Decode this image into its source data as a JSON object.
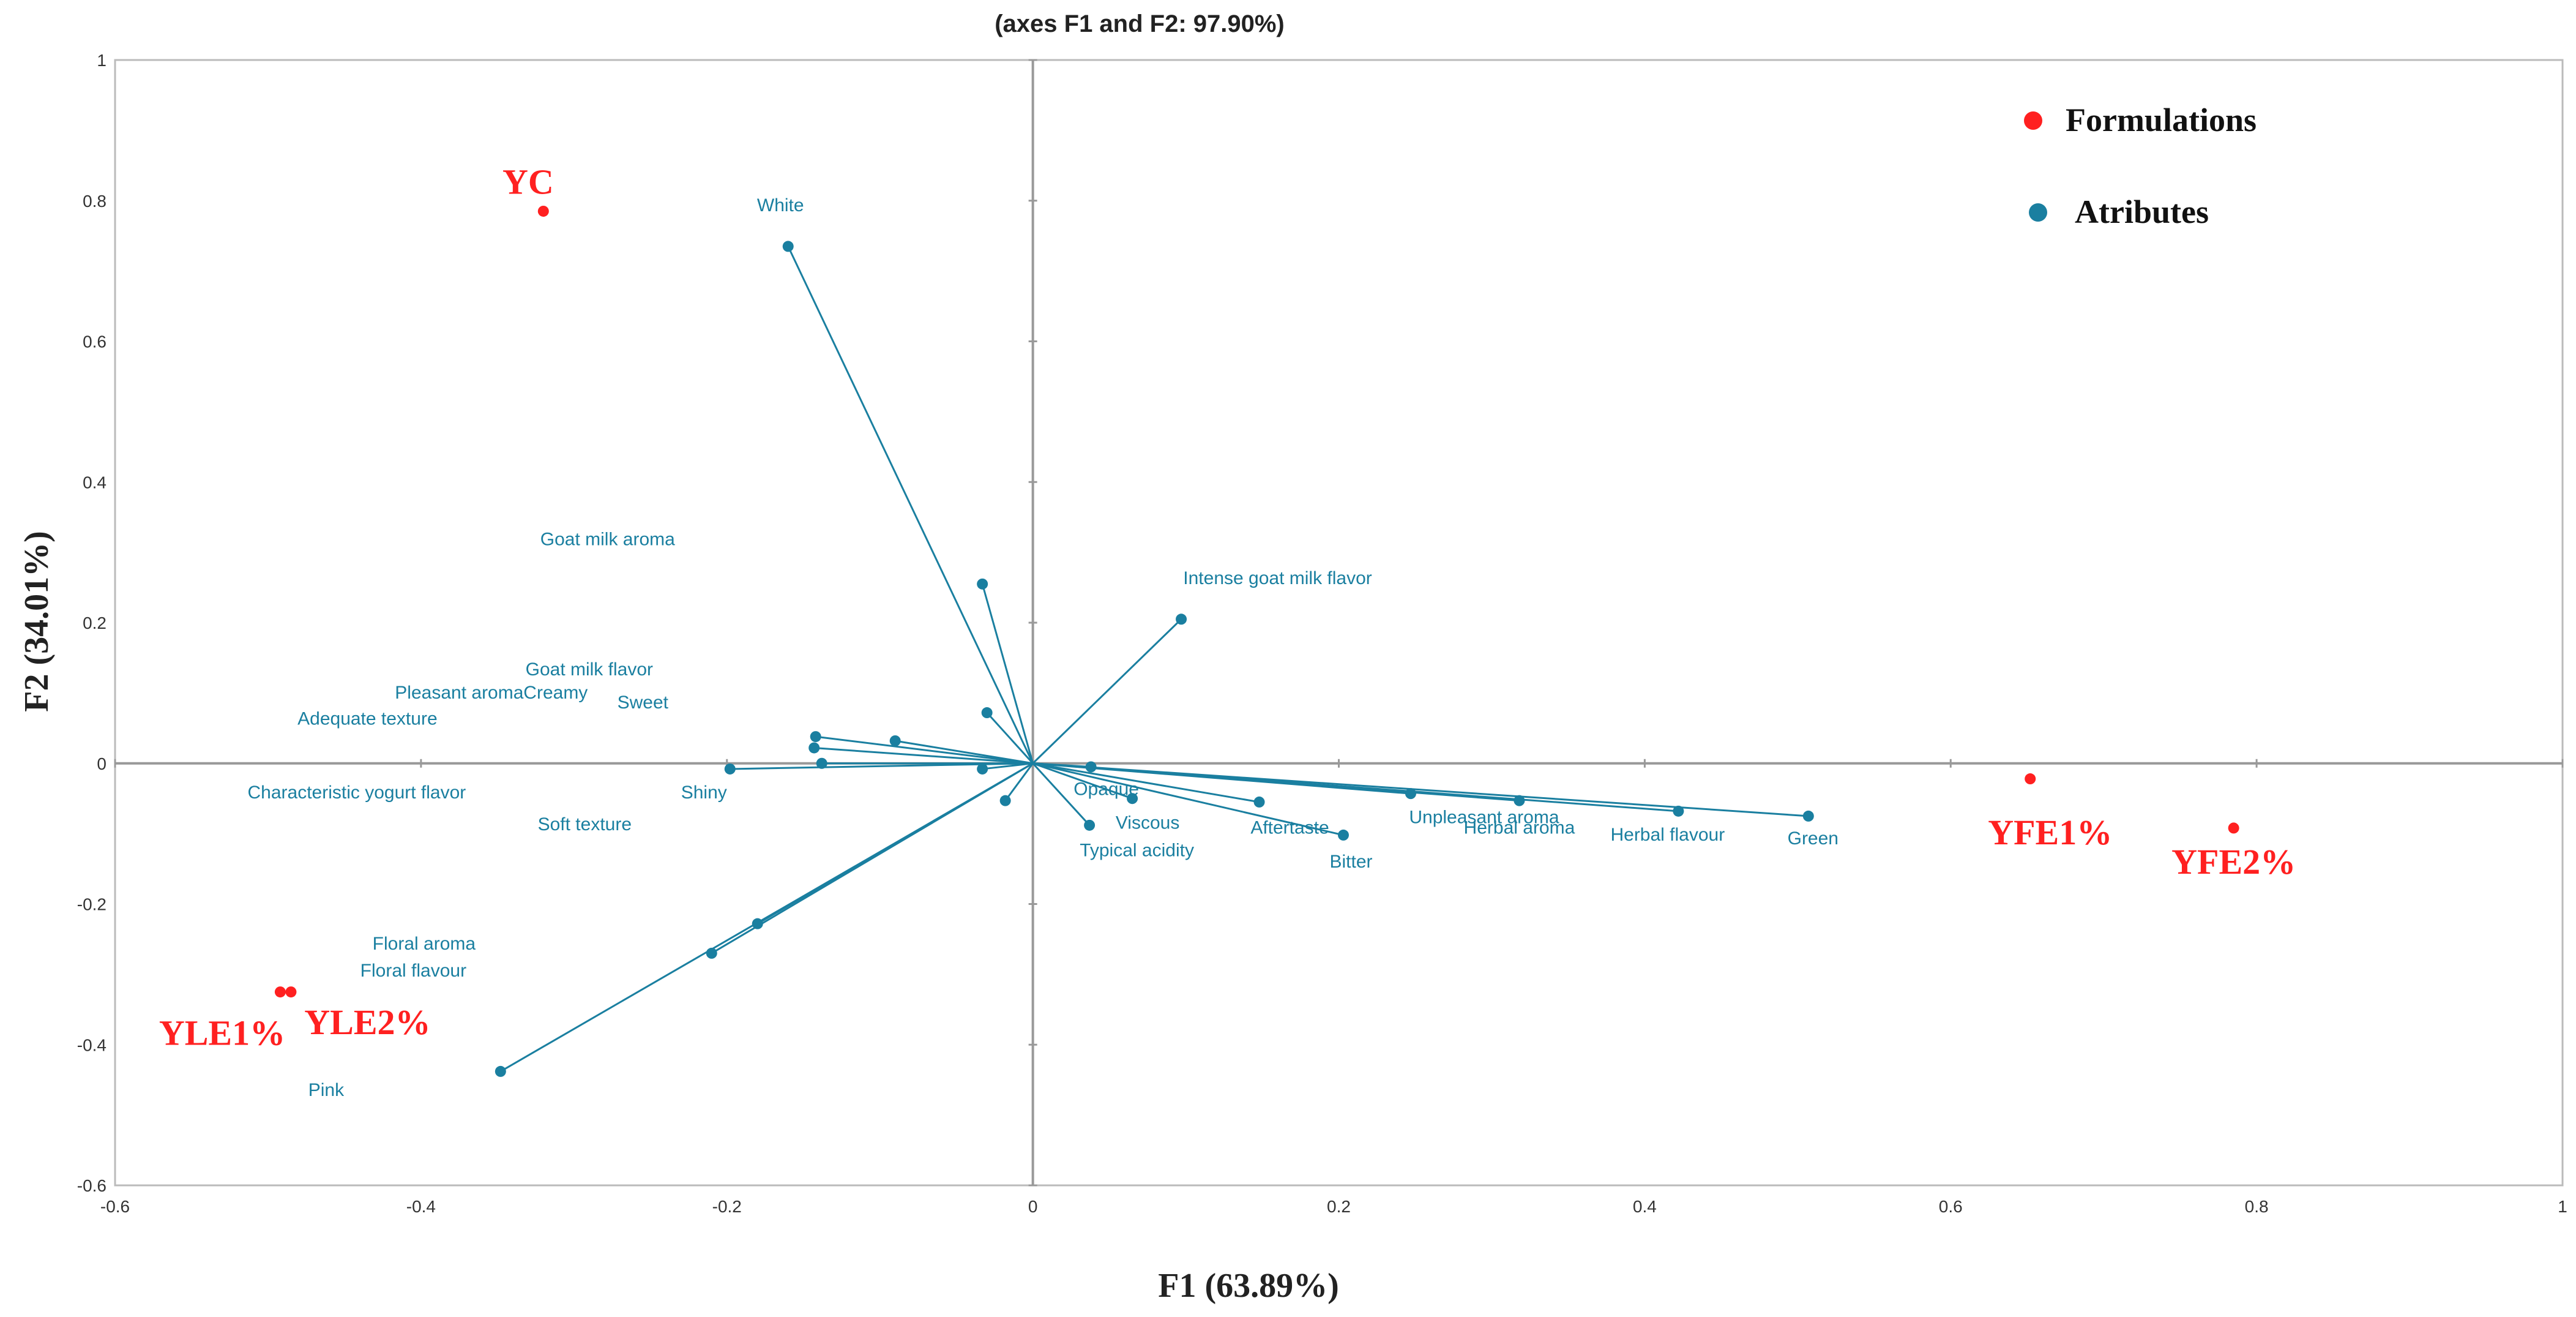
{
  "chart_data": {
    "type": "scatter",
    "subtype": "biplot",
    "title": "(axes F1 and F2: 97.90%)",
    "xlabel": "F1 (63.89%)",
    "ylabel": "F2 (34.01%)",
    "xlim": [
      -0.6,
      1
    ],
    "ylim": [
      -0.6,
      1
    ],
    "xticks": [
      "-0.6",
      "-0.4",
      "-0.2",
      "0",
      "0.2",
      "0.4",
      "0.6",
      "0.8",
      "1"
    ],
    "yticks": [
      "1",
      "0.8",
      "0.6",
      "0.4",
      "0.2",
      "0",
      "-0.2",
      "-0.4",
      "-0.6"
    ],
    "xtick_values": [
      -0.6,
      -0.4,
      -0.2,
      0,
      0.2,
      0.4,
      0.6,
      0.8,
      1
    ],
    "ytick_values": [
      1,
      0.8,
      0.6,
      0.4,
      0.2,
      0,
      -0.2,
      -0.4,
      -0.6
    ],
    "legend": {
      "placement": "top-right",
      "entries": [
        {
          "label": "Formulations",
          "color": "#ff2020"
        },
        {
          "label": "Atributes",
          "color": "#1a7fa0"
        }
      ]
    },
    "formulations": {
      "color": "#ff2020",
      "points": [
        {
          "label": "YC",
          "x": -0.32,
          "y": 0.785,
          "lx": -0.33,
          "ly": 0.81
        },
        {
          "label": "YFE1%",
          "x": 0.652,
          "y": -0.022,
          "lx": 0.665,
          "ly": -0.115
        },
        {
          "label": "YFE2%",
          "x": 0.785,
          "y": -0.092,
          "lx": 0.785,
          "ly": -0.157
        },
        {
          "label": "YLE1%",
          "x": -0.492,
          "y": -0.325,
          "lx": -0.53,
          "ly": -0.4
        },
        {
          "label": "YLE2%",
          "x": -0.485,
          "y": -0.325,
          "lx": -0.435,
          "ly": -0.385
        }
      ]
    },
    "attributes": {
      "color": "#1a7fa0",
      "points": [
        {
          "label": "White",
          "x": -0.16,
          "y": 0.735,
          "lx": -0.165,
          "ly": 0.785
        },
        {
          "label": "Intense goat milk flavor",
          "x": 0.097,
          "y": 0.205,
          "lx": 0.16,
          "ly": 0.255
        },
        {
          "label": "Goat milk aroma",
          "x": -0.033,
          "y": 0.255,
          "lx": -0.278,
          "ly": 0.31
        },
        {
          "label": "Goat milk flavor",
          "x": -0.03,
          "y": 0.072,
          "lx": -0.29,
          "ly": 0.125
        },
        {
          "label": "Pleasant aroma",
          "x": -0.142,
          "y": 0.038,
          "lx": -0.375,
          "ly": 0.092
        },
        {
          "label": "Creamy",
          "x": -0.09,
          "y": 0.032,
          "lx": -0.312,
          "ly": 0.092
        },
        {
          "label": "Sweet",
          "x": -0.143,
          "y": 0.022,
          "lx": -0.255,
          "ly": 0.078
        },
        {
          "label": "Adequate texture",
          "x": -0.138,
          "y": 0.0,
          "lx": -0.435,
          "ly": 0.055
        },
        {
          "label": "Shiny",
          "x": -0.198,
          "y": -0.008,
          "lx": -0.215,
          "ly": -0.05
        },
        {
          "label": "Characteristic yogurt flavor",
          "x": -0.033,
          "y": -0.008,
          "lx": -0.442,
          "ly": -0.05
        },
        {
          "label": "Soft texture",
          "x": -0.018,
          "y": -0.053,
          "lx": -0.293,
          "ly": -0.095
        },
        {
          "label": "Floral aroma",
          "x": -0.21,
          "y": -0.27,
          "lx": -0.398,
          "ly": -0.265
        },
        {
          "label": "Floral flavour",
          "x": -0.18,
          "y": -0.228,
          "lx": -0.405,
          "ly": -0.303
        },
        {
          "label": "Pink",
          "x": -0.348,
          "y": -0.438,
          "lx": -0.462,
          "ly": -0.473
        },
        {
          "label": "Opaque",
          "x": 0.038,
          "y": -0.005,
          "lx": 0.048,
          "ly": -0.045
        },
        {
          "label": "Viscous",
          "x": 0.065,
          "y": -0.05,
          "lx": 0.075,
          "ly": -0.093
        },
        {
          "label": "Typical acidity",
          "x": 0.037,
          "y": -0.088,
          "lx": 0.068,
          "ly": -0.132
        },
        {
          "label": "Aftertaste",
          "x": 0.148,
          "y": -0.055,
          "lx": 0.168,
          "ly": -0.1
        },
        {
          "label": "Bitter",
          "x": 0.203,
          "y": -0.102,
          "lx": 0.208,
          "ly": -0.148
        },
        {
          "label": "Unpleasant aroma",
          "x": 0.247,
          "y": -0.043,
          "lx": 0.295,
          "ly": -0.085
        },
        {
          "label": "Herbal aroma",
          "x": 0.318,
          "y": -0.053,
          "lx": 0.318,
          "ly": -0.1
        },
        {
          "label": "Herbal flavour",
          "x": 0.422,
          "y": -0.068,
          "lx": 0.415,
          "ly": -0.11
        },
        {
          "label": "Green",
          "x": 0.507,
          "y": -0.075,
          "lx": 0.51,
          "ly": -0.115
        }
      ]
    }
  }
}
